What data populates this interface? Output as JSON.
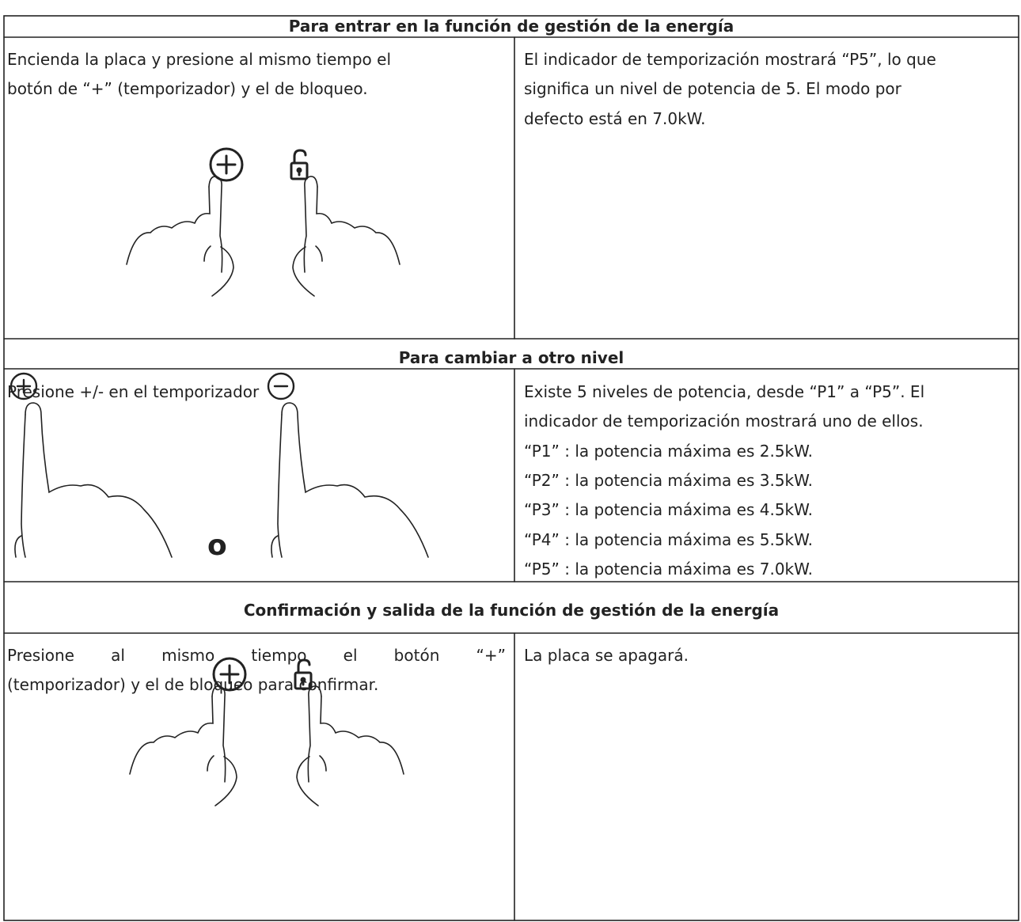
{
  "sections": [
    {
      "title": "Para entrar en la función de gestión de la energía",
      "left": {
        "lines": [
          "Encienda la placa y presione al mismo tiempo el",
          "botón de “+” (temporizador) y el de bloqueo."
        ]
      },
      "right": {
        "lines": [
          "El indicador de temporización mostrará “P5”, lo que",
          "significa un nivel de potencia de 5. El modo por",
          "defecto está en 7.0kW."
        ]
      }
    },
    {
      "title": "Para cambiar a otro nivel",
      "left": {
        "lines": [
          "Presione +/- en el temporizador"
        ],
        "separator": "o"
      },
      "right": {
        "lines": [
          "Existe 5 niveles de potencia, desde “P1” a “P5”. El",
          "indicador de temporización mostrará uno de ellos.",
          "“P1” : la potencia máxima es 2.5kW.",
          "“P2” : la potencia máxima es 3.5kW.",
          "“P3” : la potencia máxima es 4.5kW.",
          "“P4” : la potencia máxima es 5.5kW.",
          "“P5” : la potencia máxima es 7.0kW."
        ]
      }
    },
    {
      "title": "Confirmación y salida de la función de gestión de la energía",
      "left": {
        "lines": [
          "Presione al mismo tiempo el botón “+”",
          "(temporizador) y el de bloqueo para confirmar."
        ]
      },
      "right": {
        "lines": [
          "La placa se apagará."
        ]
      }
    }
  ]
}
